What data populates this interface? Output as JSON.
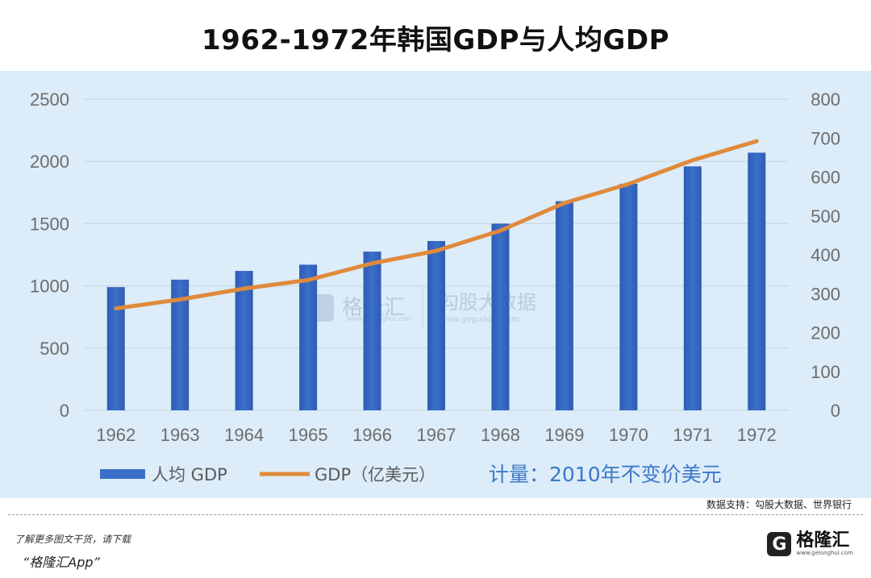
{
  "chart_data": {
    "type": "bar+line",
    "title": "1962-1972年韩国GDP与人均GDP",
    "categories": [
      "1962",
      "1963",
      "1964",
      "1965",
      "1966",
      "1967",
      "1968",
      "1969",
      "1970",
      "1971",
      "1972"
    ],
    "series": [
      {
        "name": "人均 GDP",
        "type": "bar",
        "axis": "left",
        "values": [
          990,
          1050,
          1120,
          1170,
          1275,
          1360,
          1500,
          1680,
          1820,
          1960,
          2070
        ]
      },
      {
        "name": "GDP（亿美元）",
        "type": "line",
        "axis": "right",
        "values": [
          262,
          285,
          313,
          335,
          378,
          410,
          462,
          533,
          582,
          643,
          692
        ]
      }
    ],
    "y_left": {
      "min": 0,
      "max": 2500,
      "ticks": [
        0,
        500,
        1000,
        1500,
        2000,
        2500
      ]
    },
    "y_right": {
      "min": 0,
      "max": 800,
      "ticks": [
        0,
        100,
        200,
        300,
        400,
        500,
        600,
        700,
        800
      ]
    },
    "grid": true,
    "legend_position": "bottom-left",
    "annotation": "计量：2010年不变价美元",
    "colors": {
      "bar": "#3b6fc9",
      "bar_dark": "#2e5cb4",
      "line": "#e08a3c",
      "background": "#dcecf8",
      "grid": "#c8d8e6"
    }
  },
  "watermark": {
    "brand": "格隆汇",
    "site": "勾股大数据",
    "url": "www.gogudata.com",
    "url2": "www.gelonghui.com"
  },
  "source": "数据支持：勾股大数据、世界银行",
  "footer": {
    "line1": "了解更多图文干货，请下载",
    "line2": "“格隆汇App”"
  },
  "logo": {
    "mark": "G",
    "name": "格隆汇",
    "url": "www.gelonghui.com"
  }
}
